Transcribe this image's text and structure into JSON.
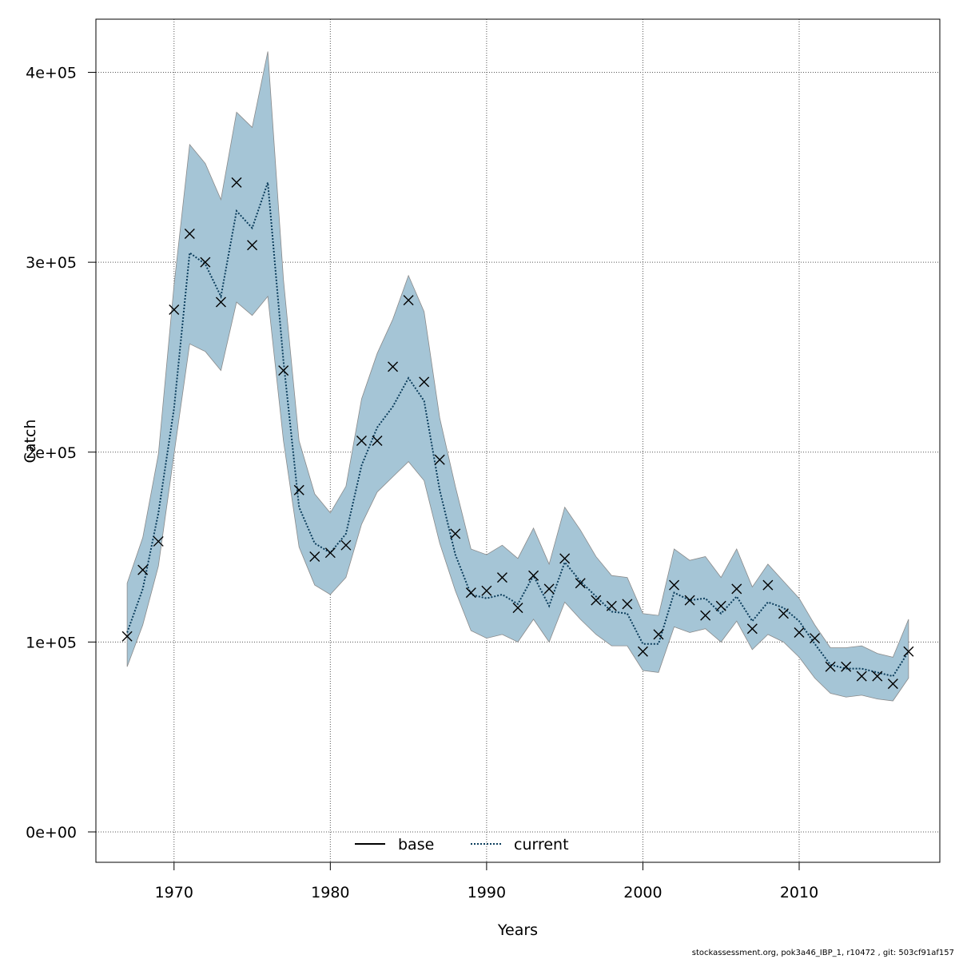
{
  "chart_data": {
    "type": "line",
    "xlabel": "Years",
    "ylabel": "Catch",
    "xlim": [
      1965,
      2019
    ],
    "ylim": [
      -16000,
      428000
    ],
    "x_ticks": [
      1970,
      1980,
      1990,
      2000,
      2010
    ],
    "y_ticks": [
      0,
      100000,
      200000,
      300000,
      400000
    ],
    "y_tick_labels": [
      "0e+00",
      "1e+05",
      "2e+05",
      "3e+05",
      "4e+05"
    ],
    "grid": true,
    "legend": {
      "position": "bottom-center",
      "entries": [
        "base",
        "current"
      ]
    },
    "colors": {
      "band": "#a5c5d6",
      "band_edge": "#8a8a8a",
      "current_line": "#0b3d5c",
      "base_line": "#000000",
      "grid": "#555555"
    },
    "x": [
      1967,
      1968,
      1969,
      1970,
      1971,
      1972,
      1973,
      1974,
      1975,
      1976,
      1977,
      1978,
      1979,
      1980,
      1981,
      1982,
      1983,
      1984,
      1985,
      1986,
      1987,
      1988,
      1989,
      1990,
      1991,
      1992,
      1993,
      1994,
      1995,
      1996,
      1997,
      1998,
      1999,
      2000,
      2001,
      2002,
      2003,
      2004,
      2005,
      2006,
      2007,
      2008,
      2009,
      2010,
      2011,
      2012,
      2013,
      2014,
      2015,
      2016,
      2017
    ],
    "series": [
      {
        "name": "current",
        "style": "dotted",
        "values": [
          105000,
          128000,
          168000,
          223000,
          305000,
          299000,
          282000,
          327000,
          318000,
          342000,
          248000,
          171000,
          152000,
          147000,
          157000,
          193000,
          213000,
          224000,
          239000,
          227000,
          180000,
          146000,
          125000,
          123000,
          125000,
          120000,
          135000,
          119000,
          142000,
          132000,
          124000,
          116000,
          115000,
          99000,
          99000,
          126000,
          122000,
          123000,
          115000,
          124000,
          111000,
          121000,
          118000,
          111000,
          99000,
          88000,
          86000,
          86000,
          84000,
          82000,
          95000
        ]
      },
      {
        "name": "observed",
        "marker": "x",
        "values": [
          103000,
          138000,
          153000,
          275000,
          315000,
          300000,
          279000,
          342000,
          309000,
          null,
          243000,
          180000,
          145000,
          147000,
          151000,
          206000,
          206000,
          245000,
          280000,
          237000,
          196000,
          157000,
          126000,
          127000,
          134000,
          118000,
          135000,
          128000,
          144000,
          131000,
          122000,
          119000,
          120000,
          95000,
          104000,
          130000,
          122000,
          114000,
          119000,
          128000,
          107000,
          130000,
          115000,
          105000,
          102000,
          87000,
          87000,
          82000,
          82000,
          78000,
          95000
        ]
      },
      {
        "name": "upper",
        "values": [
          131000,
          155000,
          199000,
          288000,
          362000,
          352000,
          333000,
          379000,
          371000,
          411000,
          291000,
          206000,
          178000,
          168000,
          182000,
          228000,
          252000,
          270000,
          293000,
          274000,
          218000,
          182000,
          149000,
          146000,
          151000,
          144000,
          160000,
          141000,
          171000,
          159000,
          145000,
          135000,
          134000,
          115000,
          114000,
          149000,
          143000,
          145000,
          134000,
          149000,
          129000,
          141000,
          132000,
          123000,
          109000,
          97000,
          97000,
          98000,
          94000,
          92000,
          112000
        ]
      },
      {
        "name": "lower",
        "values": [
          87000,
          109000,
          140000,
          199000,
          257000,
          253000,
          243000,
          279000,
          272000,
          282000,
          206000,
          150000,
          130000,
          125000,
          134000,
          162000,
          179000,
          187000,
          195000,
          185000,
          152000,
          127000,
          106000,
          102000,
          104000,
          100000,
          112000,
          100000,
          121000,
          112000,
          104000,
          98000,
          98000,
          85000,
          84000,
          108000,
          105000,
          107000,
          100000,
          111000,
          96000,
          104000,
          100000,
          92000,
          81000,
          73000,
          71000,
          72000,
          70000,
          69000,
          81000
        ]
      }
    ]
  },
  "footer": "stockassessment.org, pok3a46_IBP_1, r10472 , git: 503cf91af157"
}
